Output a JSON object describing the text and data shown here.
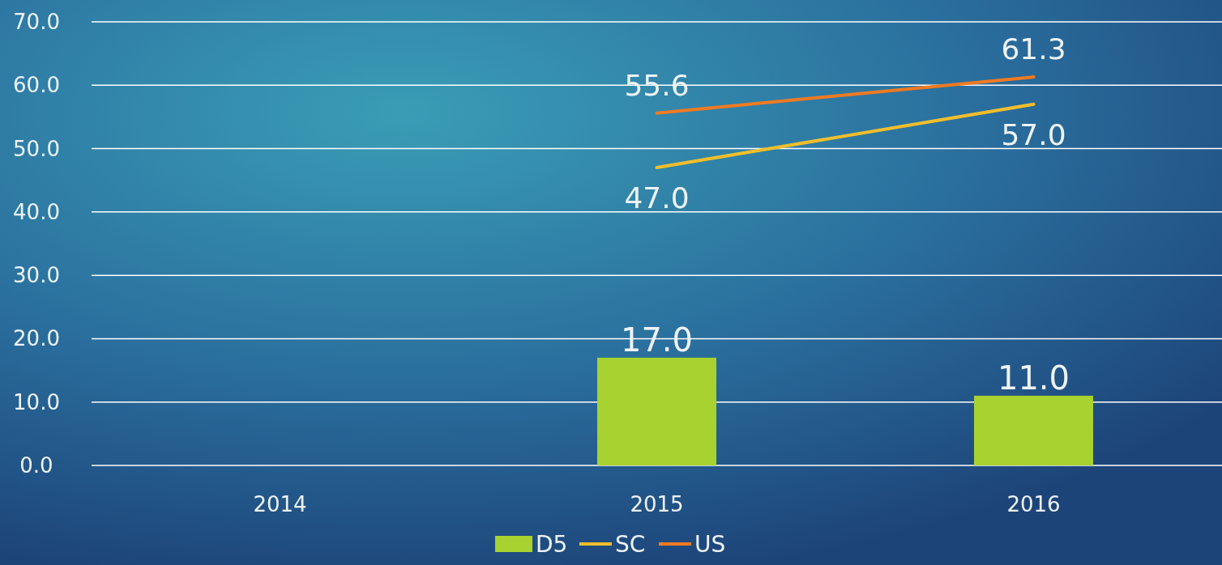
{
  "chart_data": {
    "type": "bar",
    "categories": [
      "2014",
      "2015",
      "2016"
    ],
    "series": [
      {
        "name": "D5",
        "color": "#a8d22f",
        "values": [
          null,
          17,
          11
        ],
        "value_labels": [
          null,
          "17.0",
          "11.0"
        ]
      },
      {
        "name": "SC",
        "type": "line",
        "color": "#f0be2c",
        "values": [
          null,
          47,
          57
        ],
        "value_labels": [
          null,
          "47.0",
          "57.0"
        ]
      },
      {
        "name": "US",
        "type": "line",
        "color": "#f07a22",
        "values": [
          null,
          55.6,
          61.3
        ],
        "value_labels": [
          null,
          "55.6",
          "61.3"
        ]
      }
    ],
    "ylim": [
      0,
      70
    ],
    "yticks": [
      {
        "value": 0,
        "label": "0.0"
      },
      {
        "value": 10,
        "label": "10.0"
      },
      {
        "value": 20,
        "label": "20.0"
      },
      {
        "value": 30,
        "label": "30.0"
      },
      {
        "value": 40,
        "label": "40.0"
      },
      {
        "value": 50,
        "label": "50.0"
      },
      {
        "value": 60,
        "label": "60.0"
      },
      {
        "value": 70,
        "label": "70.0"
      }
    ],
    "grid": "y",
    "legend": "bottom",
    "marker": "none",
    "line_style": "solid"
  }
}
